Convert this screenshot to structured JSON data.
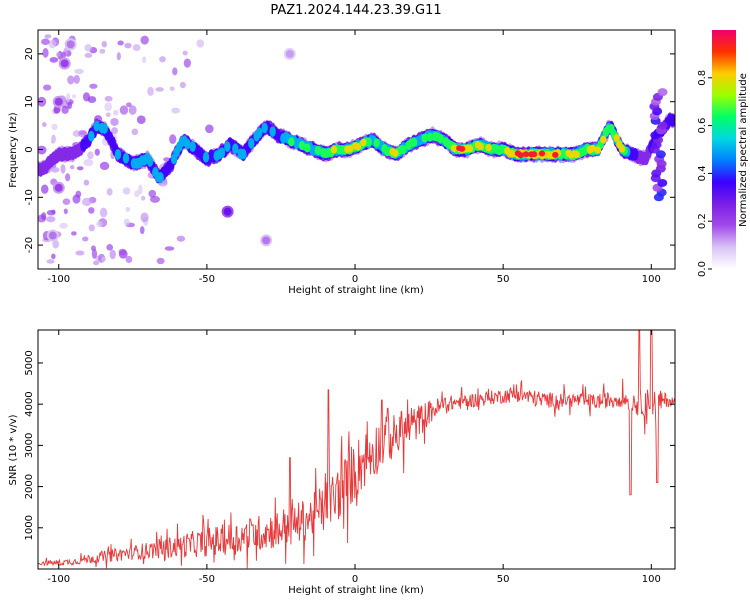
{
  "figure_title": "PAZ1.2024.144.23.39.G11",
  "colors": {
    "snr_line": "#e8393a",
    "axis": "#000000",
    "colormap": [
      "#ffffff",
      "#d9c4f5",
      "#a24ae9",
      "#7a1ee6",
      "#3a00ff",
      "#0080ff",
      "#00d8e0",
      "#00ff66",
      "#9cff00",
      "#ffcc00",
      "#ff3000",
      "#f0006e"
    ]
  },
  "chart_data": [
    {
      "type": "heatmap",
      "xlabel": "Height of straight line (km)",
      "ylabel": "Frequency (Hz)",
      "xlim": [
        -107,
        108
      ],
      "ylim": [
        -25,
        25
      ],
      "x_ticks": [
        -100,
        -50,
        0,
        50,
        100
      ],
      "y_ticks": [
        -20,
        -10,
        0,
        10,
        20
      ],
      "colorbar": {
        "label": "Normalized spectral amplitude",
        "range": [
          0,
          1
        ],
        "ticks": [
          "0.0",
          "0.2",
          "0.4",
          "0.6",
          "0.8"
        ]
      },
      "ridge": {
        "description_note": null,
        "x": [
          -105,
          -100,
          -95,
          -90,
          -87,
          -84,
          -80,
          -75,
          -70,
          -66,
          -62,
          -58,
          -54,
          -50,
          -46,
          -42,
          -38,
          -34,
          -30,
          -26,
          -22,
          -18,
          -14,
          -10,
          -6,
          -2,
          2,
          6,
          10,
          14,
          18,
          22,
          26,
          30,
          34,
          38,
          42,
          46,
          50,
          54,
          58,
          62,
          66,
          70,
          74,
          78,
          82,
          86,
          90,
          94,
          98,
          102,
          106
        ],
        "y": [
          -4,
          -1,
          -1,
          2,
          5,
          4,
          -1,
          -3,
          -2,
          -6,
          -3,
          2,
          0,
          -2,
          -1,
          1,
          -1,
          2,
          5,
          3,
          2,
          1,
          0,
          -1,
          0,
          0,
          1,
          2,
          0,
          -1,
          1,
          2,
          3,
          2,
          0,
          0,
          1,
          0,
          0,
          -1,
          -1,
          -1,
          -1,
          -1,
          -1,
          0,
          0,
          5,
          0,
          -1,
          -2,
          3,
          6
        ],
        "amplitude": [
          0.3,
          0.25,
          0.3,
          0.4,
          0.55,
          0.5,
          0.45,
          0.5,
          0.55,
          0.5,
          0.45,
          0.5,
          0.45,
          0.5,
          0.45,
          0.5,
          0.5,
          0.45,
          0.55,
          0.5,
          0.6,
          0.6,
          0.65,
          0.7,
          0.75,
          0.85,
          0.8,
          0.65,
          0.7,
          0.8,
          0.7,
          0.65,
          0.6,
          0.7,
          0.9,
          0.85,
          0.8,
          0.75,
          0.8,
          0.9,
          0.95,
          0.95,
          0.9,
          0.85,
          0.8,
          0.75,
          0.85,
          0.7,
          0.8,
          0.35,
          0.3,
          0.35,
          0.4
        ]
      },
      "blobs": [
        {
          "x": -43,
          "y": -13,
          "amp": 0.3
        },
        {
          "x": -30,
          "y": -19,
          "amp": 0.15
        },
        {
          "x": -22,
          "y": 20,
          "amp": 0.12
        },
        {
          "x": -100,
          "y": 10,
          "amp": 0.2
        },
        {
          "x": -98,
          "y": 18,
          "amp": 0.2
        },
        {
          "x": -96,
          "y": 22,
          "amp": 0.15
        },
        {
          "x": -102,
          "y": -18,
          "amp": 0.15
        },
        {
          "x": -100,
          "y": -8,
          "amp": 0.2
        }
      ]
    },
    {
      "type": "line",
      "xlabel": "Height of straight line (km)",
      "ylabel": "SNR (10 * v/v)",
      "xlim": [
        -107,
        108
      ],
      "ylim": [
        0,
        5800
      ],
      "x_ticks": [
        -100,
        -50,
        0,
        50,
        100
      ],
      "y_ticks": [
        1000,
        2000,
        3000,
        4000,
        5000
      ],
      "series": [
        {
          "x": [
            -107,
            -100,
            -95,
            -90,
            -85,
            -80,
            -75,
            -70,
            -65,
            -60,
            -55,
            -50,
            -45,
            -40,
            -35,
            -30,
            -25,
            -20,
            -15,
            -10,
            -5,
            0,
            5,
            10,
            15,
            20,
            25,
            30,
            35,
            40,
            45,
            50,
            55,
            60,
            65,
            70,
            75,
            80,
            85,
            90,
            95,
            100,
            105,
            108
          ],
          "y": [
            150,
            150,
            180,
            250,
            300,
            350,
            400,
            450,
            500,
            550,
            600,
            650,
            700,
            750,
            850,
            900,
            1000,
            1100,
            1250,
            1500,
            1900,
            2400,
            2800,
            3100,
            3300,
            3500,
            3800,
            4000,
            4050,
            4100,
            4150,
            4200,
            4250,
            4150,
            4100,
            4100,
            4100,
            4050,
            4100,
            4150,
            4050,
            4000,
            4100,
            4050
          ],
          "noise": [
            60,
            70,
            80,
            120,
            140,
            160,
            180,
            200,
            250,
            280,
            320,
            350,
            380,
            400,
            420,
            450,
            480,
            500,
            520,
            650,
            700,
            750,
            700,
            600,
            500,
            450,
            300,
            200,
            180,
            170,
            170,
            180,
            200,
            200,
            190,
            180,
            180,
            190,
            200,
            220,
            300,
            400,
            180,
            100
          ],
          "spikes": [
            {
              "x": -22,
              "y": 2700
            },
            {
              "x": -9,
              "y": 4350
            },
            {
              "x": 9,
              "y": 4100
            },
            {
              "x": 11,
              "y": 3900
            },
            {
              "x": 96,
              "y": 6000
            },
            {
              "x": 100,
              "y": 5800
            },
            {
              "x": 102,
              "y": 2100
            },
            {
              "x": 93,
              "y": 1800
            }
          ]
        }
      ]
    }
  ]
}
